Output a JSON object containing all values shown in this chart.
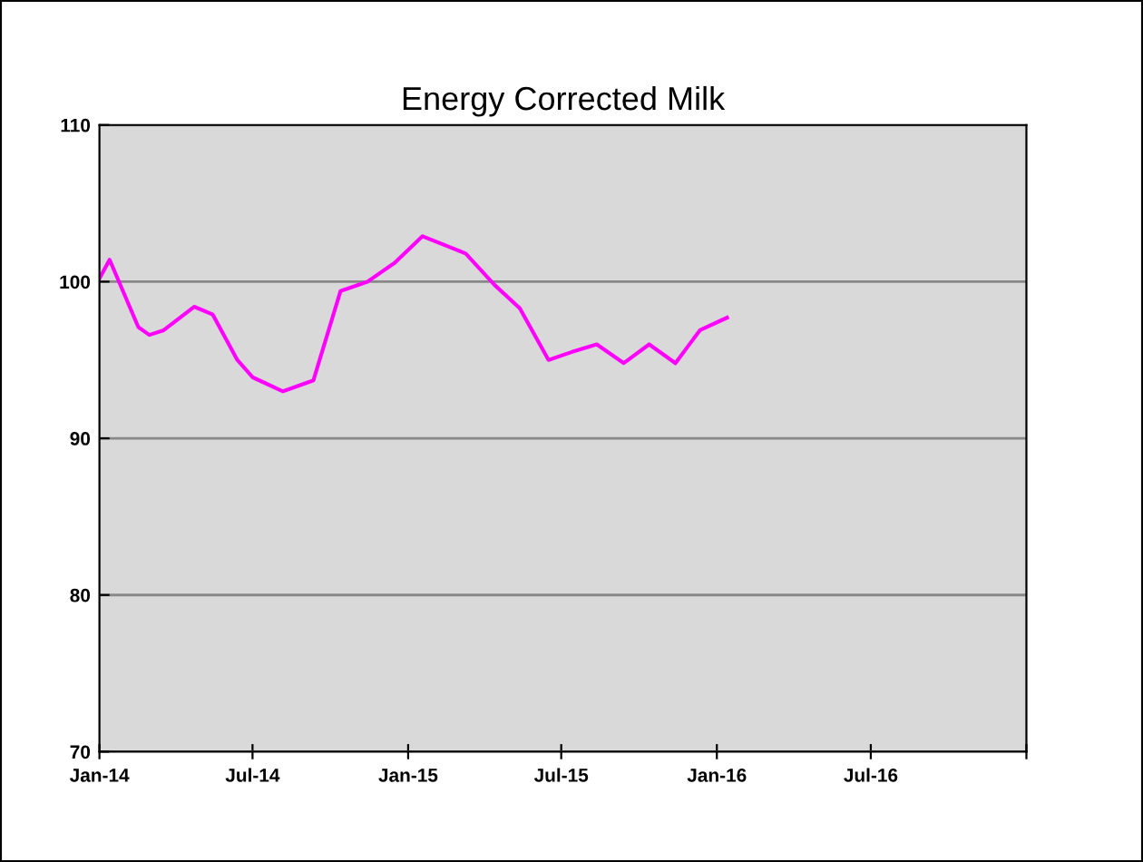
{
  "chart_data": {
    "type": "line",
    "title": "Energy Corrected Milk",
    "x": [
      "2014-01-01",
      "2014-01-13",
      "2014-02-16",
      "2014-03-01",
      "2014-03-18",
      "2014-04-23",
      "2014-05-15",
      "2014-06-13",
      "2014-07-01",
      "2014-08-06",
      "2014-09-11",
      "2014-10-13",
      "2014-11-14",
      "2014-12-16",
      "2015-01-18",
      "2015-03-10",
      "2015-04-13",
      "2015-05-13",
      "2015-06-16",
      "2015-07-13",
      "2015-08-12",
      "2015-09-13",
      "2015-10-13",
      "2015-11-13",
      "2015-12-12",
      "2016-01-13"
    ],
    "series": [
      {
        "color": "#ff00ff",
        "values": [
          100.2,
          101.4,
          97.1,
          96.6,
          96.9,
          98.4,
          97.9,
          95.0,
          93.9,
          93.0,
          93.7,
          99.4,
          100.0,
          101.2,
          102.9,
          101.8,
          99.8,
          98.3,
          95.0,
          95.5,
          96.0,
          94.8,
          96.0,
          94.8,
          96.9,
          97.7
        ]
      }
    ],
    "xlim": [
      "2014-01-01",
      "2017-01-01"
    ],
    "xticks": [
      {
        "value": "2014-01-01",
        "label": "Jan-14"
      },
      {
        "value": "2014-07-01",
        "label": "Jul-14"
      },
      {
        "value": "2015-01-01",
        "label": "Jan-15"
      },
      {
        "value": "2015-07-01",
        "label": "Jul-15"
      },
      {
        "value": "2016-01-01",
        "label": "Jan-16"
      },
      {
        "value": "2016-07-01",
        "label": "Jul-16"
      },
      {
        "value": "2017-01-01",
        "label": null
      }
    ],
    "ylim": [
      70,
      110
    ],
    "yticks": [
      70,
      80,
      90,
      100,
      110
    ],
    "grid": "y",
    "legend": false,
    "marker": "none",
    "line_style": "solid"
  }
}
